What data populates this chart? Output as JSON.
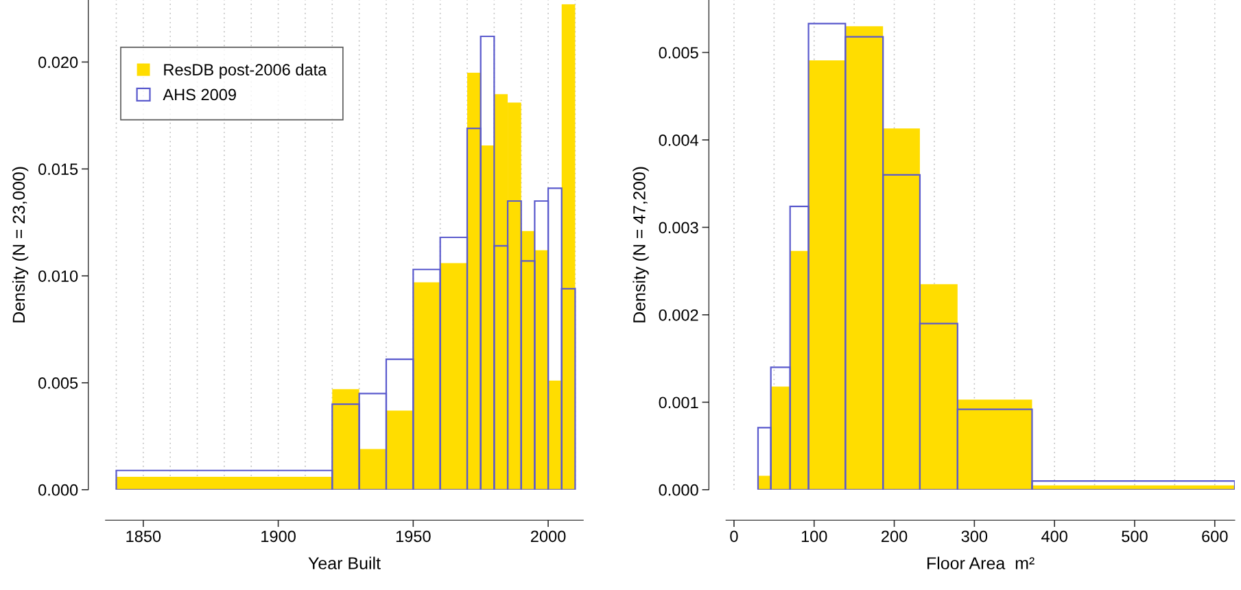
{
  "chart_data": [
    {
      "type": "histogram",
      "xlabel": "Year Built",
      "ylabel": "Density (N = 23,000)",
      "bins": [
        1840,
        1920,
        1930,
        1940,
        1950,
        1960,
        1970,
        1975,
        1980,
        1985,
        1990,
        1995,
        2000,
        2005,
        2010
      ],
      "series": [
        {
          "name": "ResDB post-2006 data",
          "color": "#ffdd00",
          "values": [
            0.0006,
            0.0047,
            0.0019,
            0.0037,
            0.0097,
            0.0106,
            0.0195,
            0.0161,
            0.0185,
            0.0181,
            0.0121,
            0.0112,
            0.0051,
            0.0227
          ]
        },
        {
          "name": "AHS 2009",
          "color": "#5a5acd",
          "values": [
            0.0009,
            0.004,
            0.0045,
            0.0061,
            0.0103,
            0.0118,
            0.0169,
            0.0212,
            0.0114,
            0.0135,
            0.0107,
            0.0135,
            0.0141,
            0.0094
          ]
        }
      ],
      "xlim": [
        1836,
        2013
      ],
      "ylim": [
        0,
        0.0229
      ],
      "xticks": [
        {
          "value": 1840,
          "label": null
        },
        1850,
        {
          "value": 1860,
          "label": null
        },
        {
          "value": 1870,
          "label": null
        },
        {
          "value": 1880,
          "label": null
        },
        {
          "value": 1890,
          "label": null
        },
        1900,
        {
          "value": 1910,
          "label": null
        },
        {
          "value": 1920,
          "label": null
        },
        {
          "value": 1930,
          "label": null
        },
        {
          "value": 1940,
          "label": null
        },
        1950,
        {
          "value": 1960,
          "label": null
        },
        {
          "value": 1970,
          "label": null
        },
        {
          "value": 1980,
          "label": null
        },
        {
          "value": 1990,
          "label": null
        },
        2000,
        {
          "value": 2010,
          "label": null
        }
      ],
      "yticks": [
        {
          "value": 0,
          "label": "0.000"
        },
        {
          "value": 0.005,
          "label": "0.005"
        },
        {
          "value": 0.01,
          "label": "0.010"
        },
        {
          "value": 0.015,
          "label": "0.015"
        },
        {
          "value": 0.02,
          "label": "0.020"
        }
      ],
      "grid": "x",
      "legend": "top left"
    },
    {
      "type": "histogram",
      "xlabel": "Floor Area  m²",
      "ylabel": "Density (N = 47,200)",
      "bins": [
        30,
        46,
        70,
        93,
        139,
        186,
        232,
        279,
        372,
        625
      ],
      "series": [
        {
          "color": "#ffdd00",
          "values": [
            0.00016,
            0.00118,
            0.00273,
            0.00491,
            0.0053,
            0.00413,
            0.00235,
            0.00103,
            5e-05
          ]
        },
        {
          "color": "#5a5acd",
          "values": [
            0.00071,
            0.0014,
            0.00324,
            0.00533,
            0.00518,
            0.0036,
            0.0019,
            0.00092,
            0.0001
          ]
        }
      ],
      "xlim": [
        -10,
        625
      ],
      "ylim": [
        0,
        0.0056
      ],
      "xticks": [
        0,
        {
          "value": 50,
          "label": null
        },
        100,
        {
          "value": 150,
          "label": null
        },
        200,
        {
          "value": 250,
          "label": null
        },
        300,
        {
          "value": 350,
          "label": null
        },
        400,
        {
          "value": 450,
          "label": null
        },
        500,
        {
          "value": 550,
          "label": null
        },
        600
      ],
      "yticks": [
        {
          "value": 0,
          "label": "0.000"
        },
        {
          "value": 0.001,
          "label": "0.001"
        },
        {
          "value": 0.002,
          "label": "0.002"
        },
        {
          "value": 0.003,
          "label": "0.003"
        },
        {
          "value": 0.004,
          "label": "0.004"
        },
        {
          "value": 0.005,
          "label": "0.005"
        }
      ],
      "grid": "x",
      "legend": false
    }
  ]
}
